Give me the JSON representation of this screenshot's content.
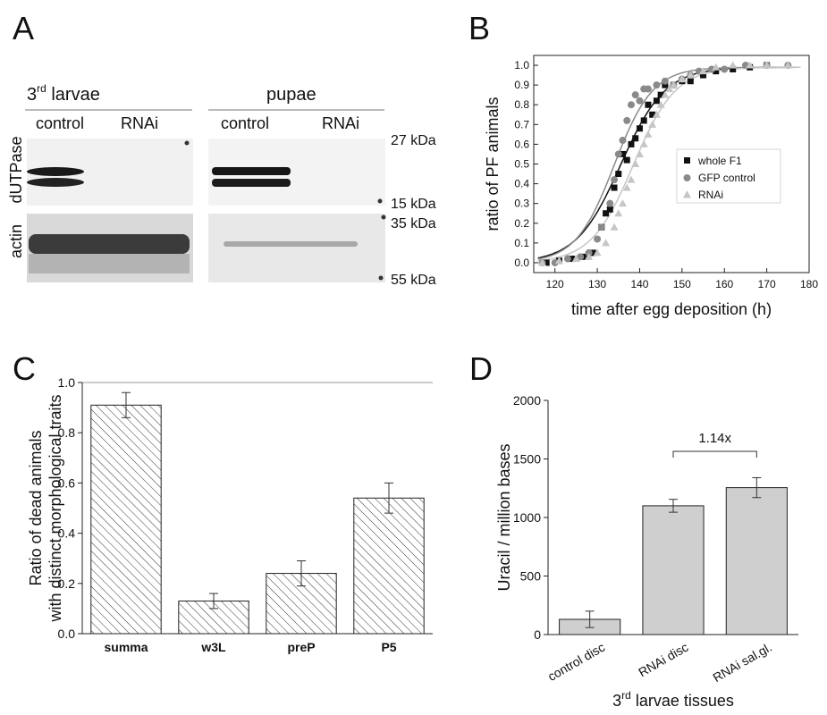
{
  "panels": {
    "A": {
      "letter": "A",
      "col_headers": {
        "larvae_main": "3",
        "larvae_sup": "rd",
        "larvae_rest": " larvae",
        "pupae": "pupae"
      },
      "lane_labels": [
        "control",
        "RNAi",
        "control",
        "RNAi"
      ],
      "row_labels": [
        "dUTPase",
        "actin"
      ],
      "markers": [
        "27 kDa",
        "15 kDa",
        "35 kDa",
        "55 kDa"
      ]
    },
    "B": {
      "letter": "B"
    },
    "C": {
      "letter": "C"
    },
    "D": {
      "letter": "D",
      "bracket_label": "1.14x"
    }
  },
  "chart_data": [
    {
      "id": "B",
      "type": "scatter",
      "xlabel": "time after egg deposition (h)",
      "ylabel": "ratio of PF animals",
      "xlim": [
        115,
        180
      ],
      "ylim": [
        -0.05,
        1.05
      ],
      "xticks": [
        120,
        130,
        140,
        150,
        160,
        170,
        180
      ],
      "yticks": [
        0.0,
        0.1,
        0.2,
        0.3,
        0.4,
        0.5,
        0.6,
        0.7,
        0.8,
        0.9,
        1.0
      ],
      "legend_position": "right",
      "series": [
        {
          "name": "whole F1",
          "marker": "square",
          "color": "#111111",
          "points": [
            [
              118,
              0.0
            ],
            [
              121,
              0.01
            ],
            [
              124,
              0.02
            ],
            [
              127,
              0.03
            ],
            [
              129,
              0.05
            ],
            [
              131,
              0.18
            ],
            [
              132,
              0.25
            ],
            [
              133,
              0.27
            ],
            [
              134,
              0.38
            ],
            [
              135,
              0.45
            ],
            [
              136,
              0.55
            ],
            [
              137,
              0.52
            ],
            [
              138,
              0.6
            ],
            [
              139,
              0.63
            ],
            [
              140,
              0.68
            ],
            [
              141,
              0.72
            ],
            [
              142,
              0.8
            ],
            [
              143,
              0.75
            ],
            [
              144,
              0.82
            ],
            [
              145,
              0.85
            ],
            [
              146,
              0.9
            ],
            [
              148,
              0.9
            ],
            [
              150,
              0.92
            ],
            [
              152,
              0.92
            ],
            [
              155,
              0.95
            ],
            [
              158,
              0.97
            ],
            [
              162,
              0.98
            ],
            [
              166,
              0.99
            ],
            [
              170,
              1.0
            ]
          ],
          "fit": {
            "x0": 135.5,
            "k": 0.19
          }
        },
        {
          "name": "GFP control",
          "marker": "circle",
          "color": "#8a8a8a",
          "points": [
            [
              117,
              0.0
            ],
            [
              120,
              0.0
            ],
            [
              123,
              0.02
            ],
            [
              126,
              0.03
            ],
            [
              128,
              0.05
            ],
            [
              130,
              0.12
            ],
            [
              131,
              0.18
            ],
            [
              133,
              0.3
            ],
            [
              134,
              0.42
            ],
            [
              135,
              0.55
            ],
            [
              136,
              0.62
            ],
            [
              137,
              0.72
            ],
            [
              138,
              0.8
            ],
            [
              139,
              0.85
            ],
            [
              140,
              0.82
            ],
            [
              141,
              0.88
            ],
            [
              142,
              0.88
            ],
            [
              144,
              0.9
            ],
            [
              146,
              0.92
            ],
            [
              148,
              0.9
            ],
            [
              150,
              0.93
            ],
            [
              152,
              0.95
            ],
            [
              154,
              0.97
            ],
            [
              157,
              0.98
            ],
            [
              160,
              0.98
            ],
            [
              165,
              1.0
            ],
            [
              170,
              1.0
            ],
            [
              175,
              1.0
            ]
          ],
          "fit": {
            "x0": 134.0,
            "k": 0.22
          }
        },
        {
          "name": "RNAi",
          "marker": "triangle",
          "color": "#c6c6c6",
          "points": [
            [
              117,
              0.0
            ],
            [
              121,
              0.01
            ],
            [
              125,
              0.02
            ],
            [
              128,
              0.03
            ],
            [
              130,
              0.05
            ],
            [
              132,
              0.1
            ],
            [
              134,
              0.18
            ],
            [
              135,
              0.25
            ],
            [
              136,
              0.3
            ],
            [
              137,
              0.38
            ],
            [
              138,
              0.42
            ],
            [
              139,
              0.5
            ],
            [
              140,
              0.55
            ],
            [
              141,
              0.6
            ],
            [
              142,
              0.65
            ],
            [
              143,
              0.7
            ],
            [
              144,
              0.75
            ],
            [
              145,
              0.8
            ],
            [
              146,
              0.85
            ],
            [
              147,
              0.88
            ],
            [
              148,
              0.9
            ],
            [
              150,
              0.93
            ],
            [
              152,
              0.95
            ],
            [
              155,
              0.97
            ],
            [
              158,
              0.99
            ],
            [
              162,
              1.0
            ],
            [
              166,
              1.0
            ],
            [
              170,
              1.0
            ],
            [
              175,
              1.0
            ]
          ],
          "fit": {
            "x0": 138.5,
            "k": 0.2
          }
        }
      ]
    },
    {
      "id": "C",
      "type": "bar",
      "categories": [
        "summa",
        "w3L",
        "preP",
        "P5"
      ],
      "values": [
        0.91,
        0.13,
        0.24,
        0.54
      ],
      "errors": [
        0.05,
        0.03,
        0.05,
        0.06
      ],
      "ylabel_lines": [
        "Ratio of dead animals",
        "with distinct morphological traits"
      ],
      "ylim": [
        0.0,
        1.0
      ],
      "yticks": [
        0.0,
        0.2,
        0.4,
        0.6,
        0.8,
        1.0
      ],
      "fill": "hatched"
    },
    {
      "id": "D",
      "type": "bar",
      "categories": [
        "control disc",
        "RNAi disc",
        "RNAi sal.gl."
      ],
      "values": [
        130,
        1100,
        1255
      ],
      "errors": [
        70,
        55,
        85
      ],
      "ylabel": "Uracil / million bases",
      "xlabel": {
        "main": "3",
        "sup": "rd",
        "rest": " larvae tissues"
      },
      "ylim": [
        0,
        2000
      ],
      "yticks": [
        0,
        500,
        1000,
        1500,
        2000
      ],
      "bar_color": "#cfcfcf"
    }
  ]
}
